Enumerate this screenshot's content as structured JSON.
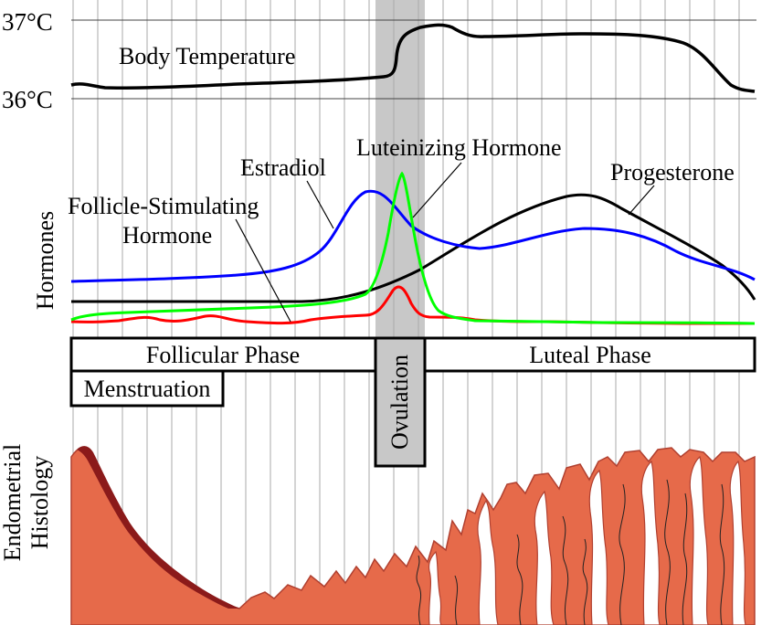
{
  "temperature": {
    "high_label": "37°C",
    "low_label": "36°C",
    "curve_label": "Body Temperature"
  },
  "hormones": {
    "axis_label": "Hormones",
    "estradiol_label": "Estradiol",
    "lh_label": "Luteinizing  Hormone",
    "progesterone_label": "Progesterone",
    "fsh_label_line1": "Follicle-Stimulating",
    "fsh_label_line2": "Hormone"
  },
  "phases": {
    "follicular": "Follicular Phase",
    "luteal": "Luteal Phase",
    "menstruation": "Menstruation",
    "ovulation": "Ovulation"
  },
  "histology": {
    "axis_label_line1": "Endometrial",
    "axis_label_line2": "Histology"
  },
  "colors": {
    "temperature": "#000000",
    "estradiol": "#0000ff",
    "lh": "#00ff00",
    "fsh": "#ff0000",
    "progesterone": "#000000",
    "endometrium": "#e66a4a",
    "menstrual_edge": "#8b1a1a",
    "ovulation_band": "#c8c8c8"
  }
}
